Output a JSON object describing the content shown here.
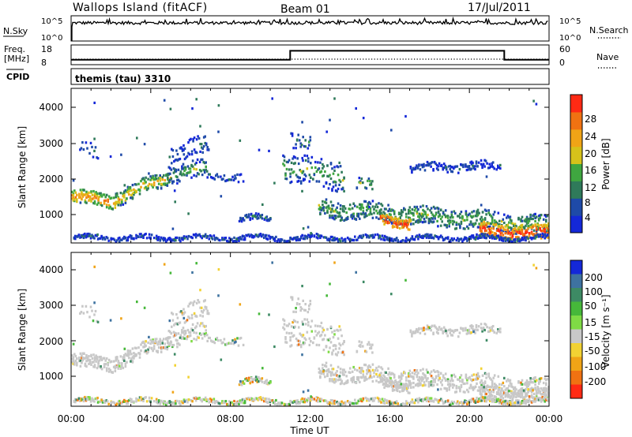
{
  "header": {
    "station": "Wallops Island (fitACF)",
    "beam": "Beam 01",
    "date": "17/Jul/2011"
  },
  "noise_panel": {
    "left_label": "N.Sky",
    "right_label": "N.Search",
    "left_ticks": [
      "10^5",
      "10^0"
    ],
    "right_ticks": [
      "10^5",
      "10^0"
    ]
  },
  "freq_panel": {
    "left_label_1": "Freq.",
    "left_label_2": "[MHz]",
    "right_label": "Nave",
    "left_ticks": [
      "18",
      "8"
    ],
    "right_ticks": [
      "60",
      "0"
    ]
  },
  "cpid_panel": {
    "label": "CPID",
    "text": "themis (tau) 3310"
  },
  "range_axis": {
    "label": "Slant Range [km]",
    "ticks": [
      "1000",
      "2000",
      "3000",
      "4000"
    ]
  },
  "time_axis": {
    "label": "Time UT",
    "ticks": [
      "00:00",
      "04:00",
      "08:00",
      "12:00",
      "16:00",
      "20:00",
      "00:00"
    ]
  },
  "power_bar": {
    "label": "Power [dB]",
    "ticks": [
      "4",
      "8",
      "12",
      "16",
      "20",
      "24",
      "28"
    ],
    "colors": [
      "#1428d8",
      "#1e4aa8",
      "#2f7a5a",
      "#3fa640",
      "#d6c21a",
      "#f0a416",
      "#f07212",
      "#ff2a14"
    ]
  },
  "velocity_bar": {
    "label": "Velocity [m s⁻¹]",
    "ticks": [
      "200",
      "100",
      "50",
      "15",
      "-15",
      "-50",
      "-100",
      "-200"
    ],
    "colors": [
      "#1428d8",
      "#3e72a0",
      "#3d8a64",
      "#46b83a",
      "#7fdb45",
      "#c8c8c8",
      "#f2d233",
      "#f0a416",
      "#f07212",
      "#ff2a14"
    ]
  },
  "chart_data": {
    "type": "heatmap",
    "x_range_hours": [
      0,
      24
    ],
    "y_range_km": [
      180,
      4500
    ],
    "frequency_mhz": [
      {
        "time": "00:00",
        "value": 10.3
      },
      {
        "time": "11:00",
        "value": 10.3
      },
      {
        "time": "11:00",
        "value": 15.2
      },
      {
        "time": "21:45",
        "value": 15.2
      },
      {
        "time": "21:45",
        "value": 10.3
      },
      {
        "time": "24:00",
        "value": 10.3
      }
    ],
    "power_echo_bands": [
      {
        "start": "00:00",
        "end": "06:45",
        "range_km_from": 1200,
        "range_km_to": 2600,
        "power_db": 20
      },
      {
        "start": "10:45",
        "end": "14:30",
        "range_km_from": 1800,
        "range_km_to": 3300,
        "power_db": 14
      },
      {
        "start": "14:00",
        "end": "24:00",
        "range_km_from": 300,
        "range_km_to": 1300,
        "power_db": 26
      },
      {
        "start": "17:00",
        "end": "21:30",
        "range_km_from": 2100,
        "range_km_to": 2500,
        "power_db": 8
      }
    ]
  }
}
